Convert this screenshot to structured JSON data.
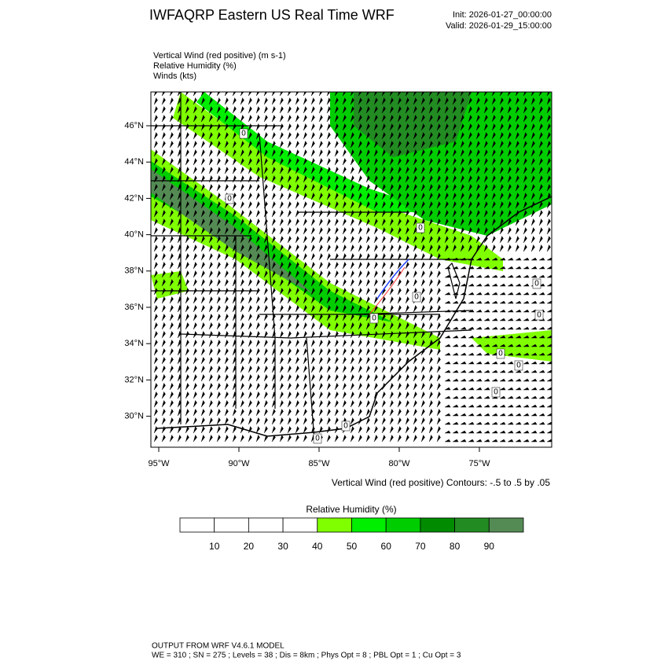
{
  "header": {
    "title": "IWFAQRP Eastern US Real Time WRF",
    "init": "Init: 2026-01-27_00:00:00",
    "valid": "Valid: 2026-01-29_15:00:00"
  },
  "fields": [
    "Vertical Wind (red positive)   (m s-1)",
    "Relative Humidity   (%)",
    "Winds   (kts)"
  ],
  "map": {
    "lat_labels": [
      "46°N",
      "44°N",
      "42°N",
      "40°N",
      "38°N",
      "36°N",
      "34°N",
      "32°N",
      "30°N"
    ],
    "lon_labels": [
      "95°W",
      "90°W",
      "85°W",
      "80°W",
      "75°W"
    ],
    "contour_label": "0",
    "contour_note": "Vertical Wind (red positive) Contours: -.5 to .5 by .05"
  },
  "colorbar": {
    "title": "Relative Humidity  (%)",
    "levels": [
      10,
      20,
      30,
      40,
      50,
      60,
      70,
      80,
      90
    ],
    "colors": [
      "#ffffff",
      "#ffffff",
      "#ffffff",
      "#ffffff",
      "#7fff00",
      "#00ee00",
      "#00cd00",
      "#008b00",
      "#228b22",
      "#548b54"
    ]
  },
  "footer": [
    "OUTPUT FROM WRF V4.6.1 MODEL",
    "WE = 310 ; SN = 275 ; Levels = 38 ; Dis = 8km ; Phys Opt = 8 ; PBL Opt = 1 ; Cu Opt = 3"
  ]
}
